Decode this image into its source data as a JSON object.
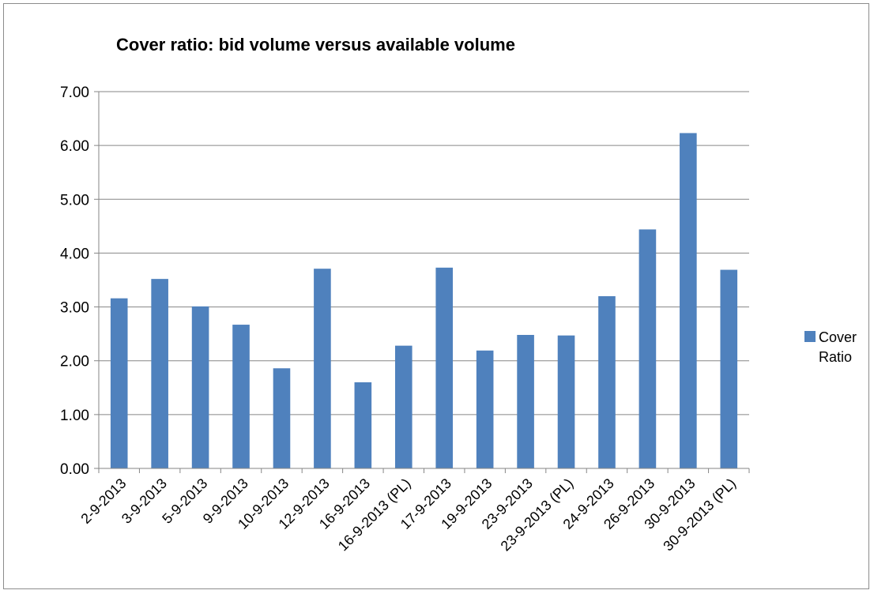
{
  "chart_data": {
    "type": "bar",
    "title": "Cover ratio:  bid volume versus available volume",
    "xlabel": "",
    "ylabel": "",
    "categories": [
      "2-9-2013",
      "3-9-2013",
      "5-9-2013",
      "9-9-2013",
      "10-9-2013",
      "12-9-2013",
      "16-9-2013",
      "16-9-2013 (PL)",
      "17-9-2013",
      "19-9-2013",
      "23-9-2013",
      "23-9-2013 (PL)",
      "24-9-2013",
      "26-9-2013",
      "30-9-2013",
      "30-9-2013 (PL)"
    ],
    "series": [
      {
        "name": "Cover Ratio",
        "legend_lines": [
          "Cover",
          "Ratio"
        ],
        "color": "#4f81bd",
        "values": [
          3.16,
          3.52,
          3.01,
          2.67,
          1.86,
          3.71,
          1.6,
          2.28,
          3.73,
          2.19,
          2.48,
          2.47,
          3.2,
          4.44,
          6.23,
          3.69
        ]
      }
    ],
    "ylim": [
      0,
      7
    ],
    "yticks": [
      0,
      1,
      2,
      3,
      4,
      5,
      6,
      7
    ],
    "ytick_labels": [
      "0.00",
      "1.00",
      "2.00",
      "3.00",
      "4.00",
      "5.00",
      "6.00",
      "7.00"
    ],
    "grid": true,
    "legend_position": "right",
    "gridline_color": "#868686",
    "axis_color": "#868686"
  }
}
